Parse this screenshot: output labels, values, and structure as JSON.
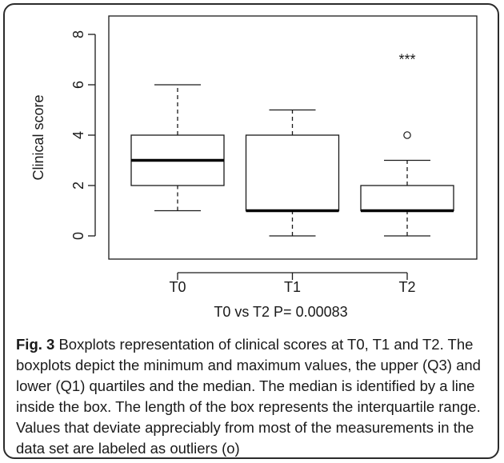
{
  "chart_data": {
    "type": "boxplot",
    "ylabel": "Clinical score",
    "xlabel": "T0 vs T2 P= 0.00083",
    "ylim": [
      0,
      8
    ],
    "yticks": [
      "0",
      "2",
      "4",
      "6",
      "8"
    ],
    "categories": [
      "T0",
      "T1",
      "T2"
    ],
    "boxes": [
      {
        "category": "T0",
        "min": 1,
        "q1": 2,
        "median": 3,
        "q3": 4,
        "max": 6,
        "outliers": []
      },
      {
        "category": "T1",
        "min": 0,
        "q1": 1,
        "median": 1,
        "q3": 4,
        "max": 5,
        "outliers": []
      },
      {
        "category": "T2",
        "min": 0,
        "q1": 1,
        "median": 1,
        "q3": 2,
        "max": 3,
        "outliers": [
          4
        ]
      }
    ],
    "annotations": [
      {
        "category": "T2",
        "y": 7,
        "text": "***"
      }
    ]
  },
  "caption": {
    "label": "Fig. 3",
    "text": " Boxplots representation of clinical scores at T0, T1 and T2. The boxplots depict the minimum and maximum values, the upper (Q3) and lower (Q1) quartiles and the median. The median is identified by a line inside the box. The length of the box represents the interquartile range. Values that deviate appreciably from most of the measurements in the data set are labeled as outliers (o)"
  }
}
